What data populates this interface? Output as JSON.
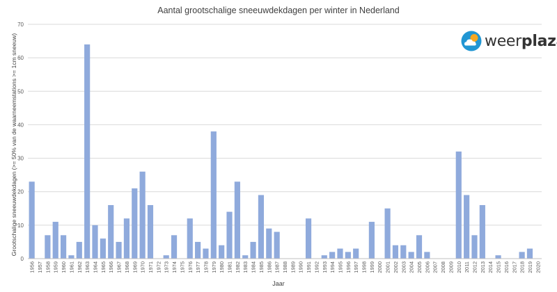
{
  "brand": {
    "name_part1": "weer",
    "name_part2": "plaza"
  },
  "colors": {
    "bar": "#8faadc",
    "grid": "#d9d9d9",
    "axis": "#bfbfbf",
    "text": "#595959",
    "brand_blue": "#2196d3",
    "brand_sun": "#f6a821"
  },
  "chart_data": {
    "type": "bar",
    "title": "Aantal grootschalige sneeuwdekdagen per winter in Nederland",
    "xlabel": "Jaar",
    "ylabel": "Grootschalige sneeuwdekdagen (>= 50% van de waarneemstations >= 1cm sneeuw)",
    "ylim": [
      0,
      70
    ],
    "yticks": [
      0,
      10,
      20,
      30,
      40,
      50,
      60,
      70
    ],
    "grid": true,
    "categories": [
      "1956",
      "1957",
      "1958",
      "1959",
      "1960",
      "1961",
      "1962",
      "1963",
      "1964",
      "1965",
      "1966",
      "1967",
      "1968",
      "1969",
      "1970",
      "1971",
      "1972",
      "1973",
      "1974",
      "1975",
      "1976",
      "1977",
      "1978",
      "1979",
      "1980",
      "1981",
      "1982",
      "1983",
      "1984",
      "1985",
      "1986",
      "1987",
      "1988",
      "1989",
      "1990",
      "1991",
      "1992",
      "1993",
      "1994",
      "1995",
      "1996",
      "1997",
      "1998",
      "1999",
      "2000",
      "2001",
      "2002",
      "2003",
      "2004",
      "2005",
      "2006",
      "2007",
      "2008",
      "2009",
      "2010",
      "2011",
      "2012",
      "2013",
      "2014",
      "2015",
      "2016",
      "2017",
      "2018",
      "2019",
      "2020"
    ],
    "values": [
      23,
      0,
      7,
      11,
      7,
      1,
      5,
      64,
      10,
      6,
      16,
      5,
      12,
      21,
      26,
      16,
      0,
      1,
      7,
      0,
      12,
      5,
      3,
      38,
      4,
      14,
      23,
      1,
      5,
      19,
      9,
      8,
      0,
      0,
      0,
      12,
      0,
      1,
      2,
      3,
      2,
      3,
      0,
      11,
      0,
      15,
      4,
      4,
      2,
      7,
      2,
      0,
      0,
      0,
      32,
      19,
      7,
      16,
      0,
      1,
      0,
      0,
      2,
      3,
      0
    ]
  }
}
